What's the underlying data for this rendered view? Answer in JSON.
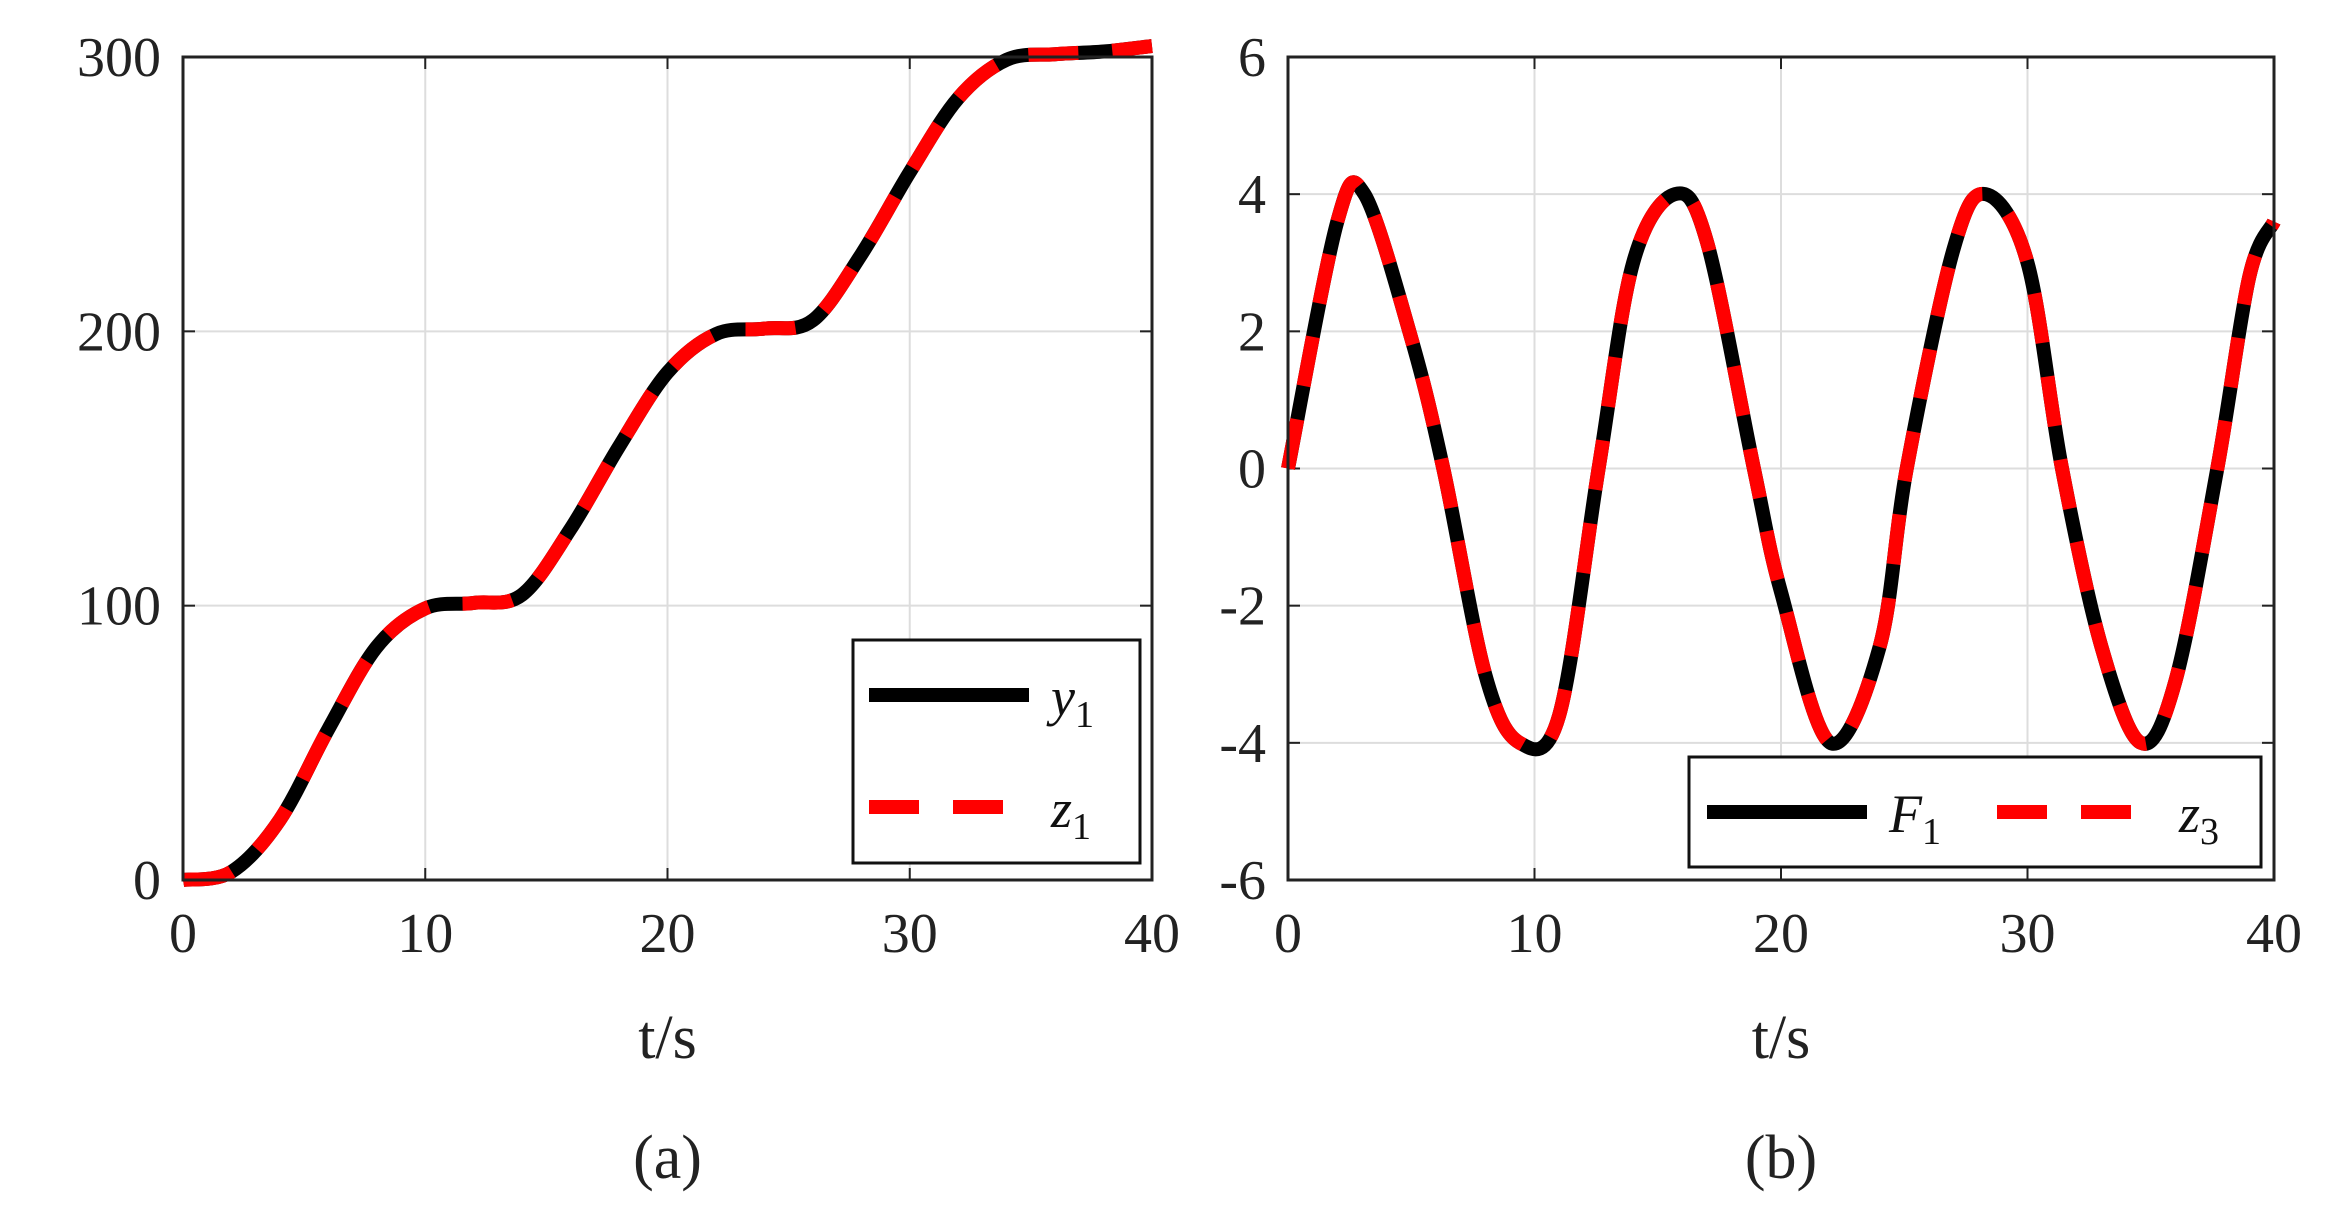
{
  "colors": {
    "series_black": "#000000",
    "series_red": "#ff0000",
    "grid": "#dddddd",
    "axis": "#222222"
  },
  "chart_data": [
    {
      "type": "line",
      "caption": "(a)",
      "xlabel": "t/s",
      "ylabel": "",
      "xlim": [
        0,
        40
      ],
      "ylim": [
        0,
        300
      ],
      "xticks": [
        "0",
        "10",
        "20",
        "30",
        "40"
      ],
      "yticks": [
        "0",
        "100",
        "200",
        "300"
      ],
      "grid": true,
      "legend_position": "bottom-right",
      "series": [
        {
          "name": "y",
          "name_sub": "1",
          "color": "#000000",
          "style": "solid",
          "x": [
            0,
            2,
            4,
            6,
            8,
            10,
            12,
            14,
            16,
            18,
            20,
            22,
            24,
            26,
            28,
            30,
            32,
            34,
            36,
            38,
            40
          ],
          "y": [
            0,
            3,
            22,
            55,
            85,
            99,
            101,
            104,
            128,
            158,
            185,
            199,
            201,
            204,
            228,
            258,
            285,
            299,
            301,
            302,
            304
          ]
        },
        {
          "name": "z",
          "name_sub": "1",
          "color": "#ff0000",
          "style": "dashed",
          "x": [
            0,
            2,
            4,
            6,
            8,
            10,
            12,
            14,
            16,
            18,
            20,
            22,
            24,
            26,
            28,
            30,
            32,
            34,
            36,
            38,
            40
          ],
          "y": [
            0,
            3,
            22,
            55,
            85,
            99,
            101,
            104,
            128,
            158,
            185,
            199,
            201,
            204,
            228,
            258,
            285,
            299,
            301,
            302,
            304
          ]
        }
      ]
    },
    {
      "type": "line",
      "caption": "(b)",
      "xlabel": "t/s",
      "ylabel": "",
      "xlim": [
        0,
        40
      ],
      "ylim": [
        -6,
        6
      ],
      "xticks": [
        "0",
        "10",
        "20",
        "30",
        "40"
      ],
      "yticks": [
        "-6",
        "-4",
        "-2",
        "0",
        "2",
        "4",
        "6"
      ],
      "grid": true,
      "legend_position": "bottom",
      "series": [
        {
          "name": "F",
          "name_sub": "1",
          "color": "#000000",
          "style": "solid",
          "x": [
            0,
            2,
            3.1,
            5,
            6.3,
            8,
            9.4,
            11,
            12.6,
            14,
            15.7,
            17,
            18.9,
            20,
            22,
            24,
            25.1,
            27,
            28.3,
            30,
            31.4,
            33,
            34.6,
            36,
            37.7,
            39,
            40
          ],
          "y": [
            0,
            3.6,
            4,
            1.9,
            0,
            -3.0,
            -4,
            -3.6,
            0,
            3.0,
            4,
            3.3,
            0,
            -1.8,
            -4,
            -2.6,
            0,
            3.2,
            4,
            3.0,
            0,
            -2.6,
            -4,
            -3.1,
            0,
            2.8,
            3.6
          ]
        },
        {
          "name": "z",
          "name_sub": "3",
          "color": "#ff0000",
          "style": "dashed",
          "x": [
            0,
            2,
            3.1,
            5,
            6.3,
            8,
            9.4,
            11,
            12.6,
            14,
            15.7,
            17,
            18.9,
            20,
            22,
            24,
            25.1,
            27,
            28.3,
            30,
            31.4,
            33,
            34.6,
            36,
            37.7,
            39,
            40
          ],
          "y": [
            0,
            3.6,
            4,
            1.9,
            0,
            -3.0,
            -4,
            -3.6,
            0,
            3.0,
            4,
            3.3,
            0,
            -1.8,
            -4,
            -2.6,
            0,
            3.2,
            4,
            3.0,
            0,
            -2.6,
            -4,
            -3.1,
            0,
            2.8,
            3.6
          ]
        }
      ]
    }
  ]
}
